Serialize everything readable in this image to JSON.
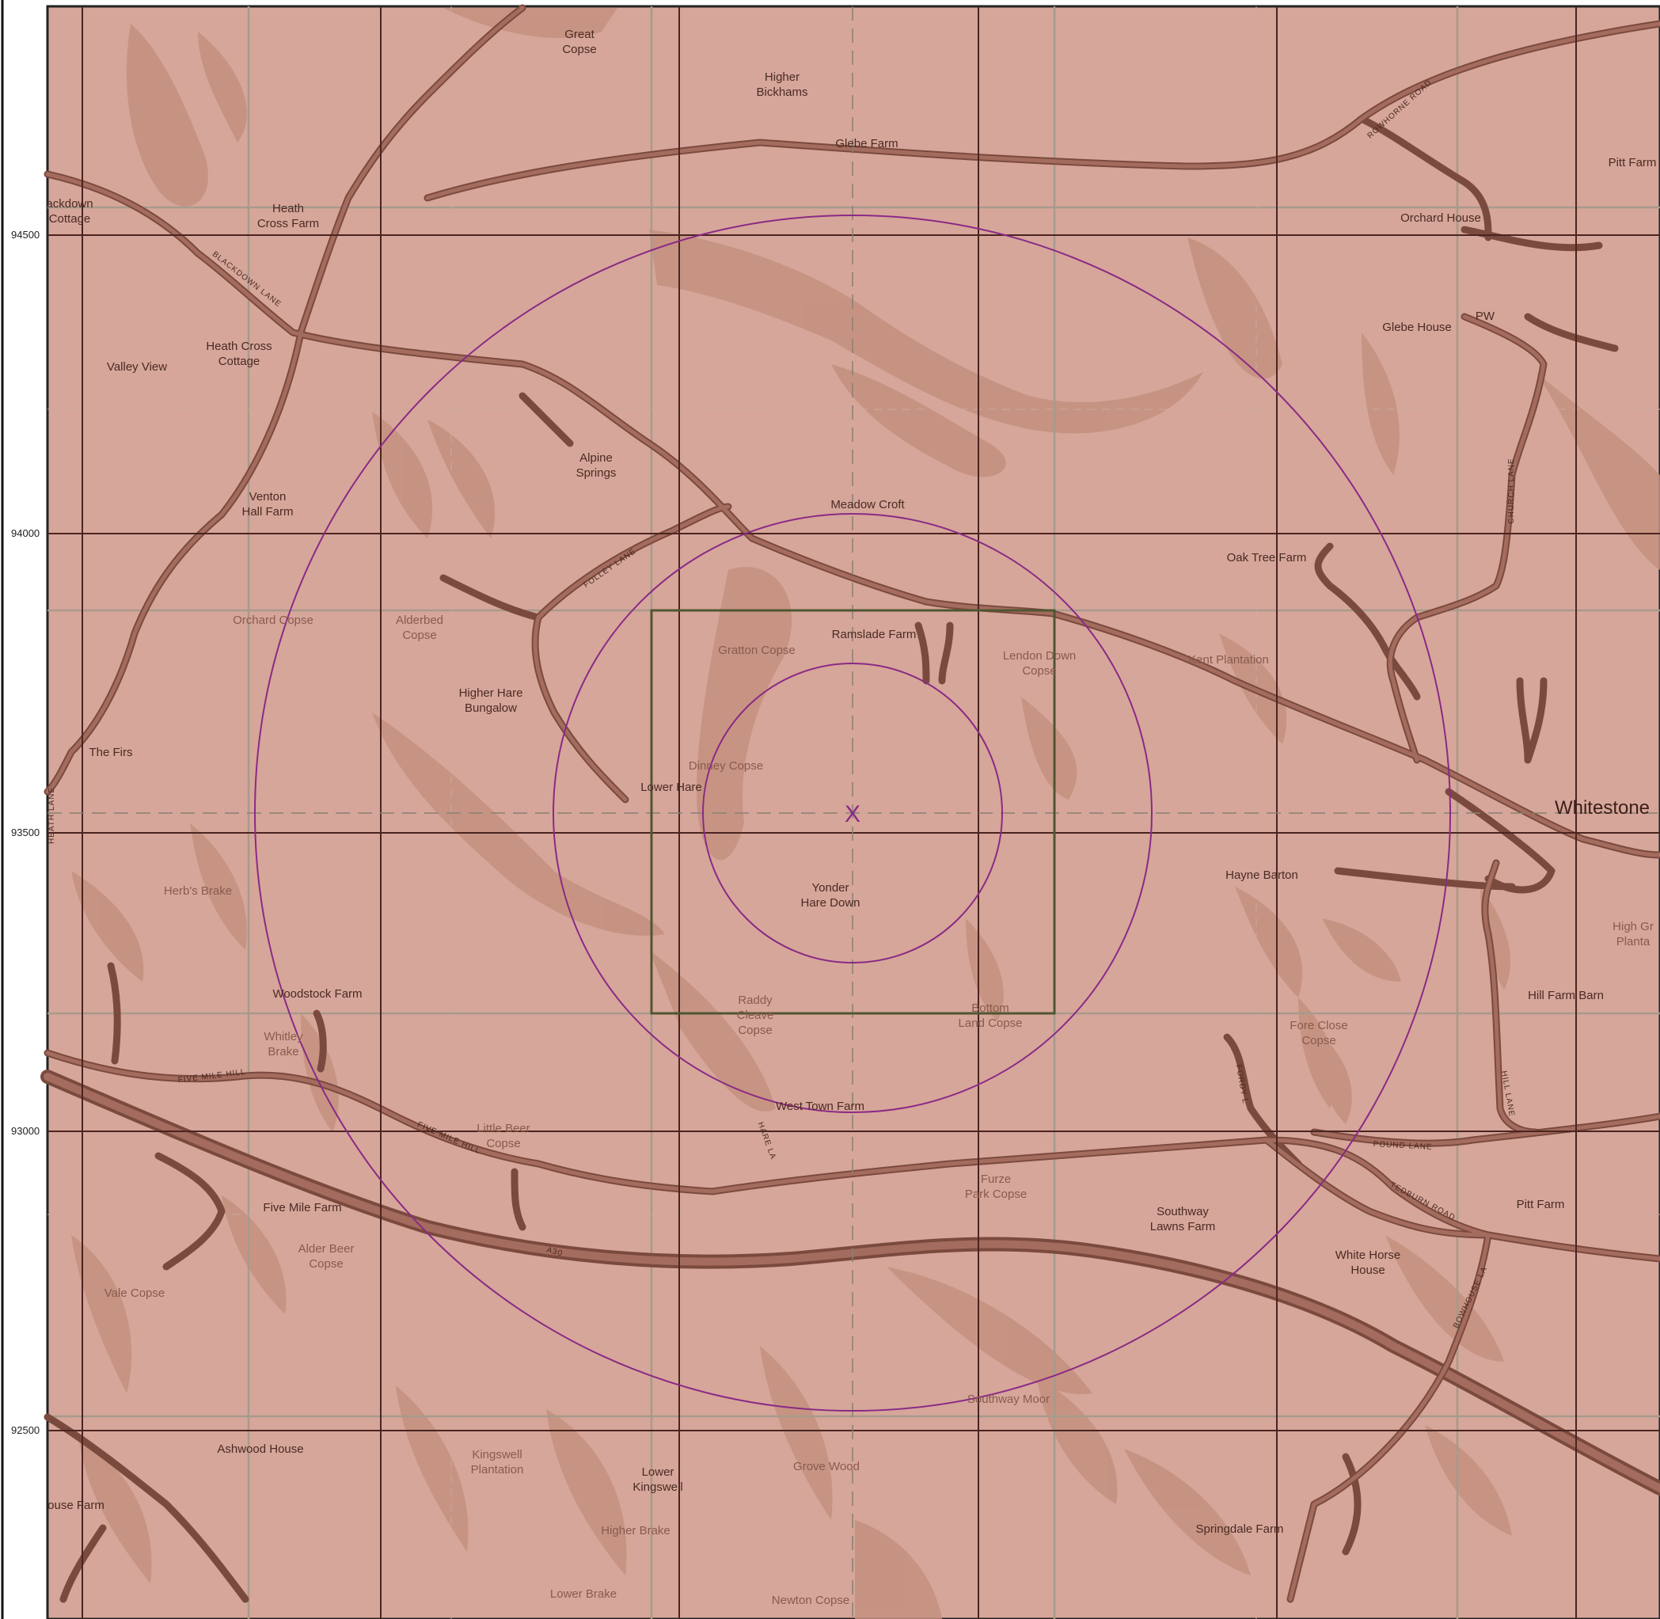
{
  "map": {
    "colors": {
      "land": "#d6a69a",
      "land_dark": "#c4907f",
      "road": "#a46c5e",
      "road_edge": "#7b4a3e",
      "grid_major": "#4a2420",
      "grid_minor": "#a79a8c",
      "rings": "#8a2a85",
      "site_box": "#4e5632"
    },
    "northing_labels": [
      "94500",
      "94000",
      "93500",
      "93000",
      "92500"
    ],
    "center_marker": "X",
    "places": [
      {
        "id": "great-copse",
        "lines": [
          "Great",
          "Copse"
        ],
        "kind": "place"
      },
      {
        "id": "higher-bickhams",
        "lines": [
          "Higher",
          "Bickhams"
        ],
        "kind": "place"
      },
      {
        "id": "glebe-farm",
        "lines": [
          "Glebe Farm"
        ],
        "kind": "place"
      },
      {
        "id": "pitt-farm-top",
        "lines": [
          "Pitt Farm"
        ],
        "kind": "place"
      },
      {
        "id": "blackdown-cottage",
        "lines": [
          "ackdown",
          "Cottage"
        ],
        "kind": "place"
      },
      {
        "id": "heath-cross-farm",
        "lines": [
          "Heath",
          "Cross Farm"
        ],
        "kind": "place"
      },
      {
        "id": "orchard-house",
        "lines": [
          "Orchard House"
        ],
        "kind": "place"
      },
      {
        "id": "glebe-house",
        "lines": [
          "Glebe House"
        ],
        "kind": "place"
      },
      {
        "id": "pw",
        "lines": [
          "PW"
        ],
        "kind": "place"
      },
      {
        "id": "heath-cross-cottage",
        "lines": [
          "Heath Cross",
          "Cottage"
        ],
        "kind": "place"
      },
      {
        "id": "valley-view",
        "lines": [
          "Valley View"
        ],
        "kind": "place"
      },
      {
        "id": "alpine-springs",
        "lines": [
          "Alpine",
          "Springs"
        ],
        "kind": "place"
      },
      {
        "id": "venton-hall-farm",
        "lines": [
          "Venton",
          "Hall Farm"
        ],
        "kind": "place"
      },
      {
        "id": "meadow-croft",
        "lines": [
          "Meadow Croft"
        ],
        "kind": "place"
      },
      {
        "id": "oak-tree-farm",
        "lines": [
          "Oak Tree Farm"
        ],
        "kind": "place"
      },
      {
        "id": "orchard-copse",
        "lines": [
          "Orchard Copse"
        ],
        "kind": "wood"
      },
      {
        "id": "alderbed-copse",
        "lines": [
          "Alderbed",
          "Copse"
        ],
        "kind": "wood"
      },
      {
        "id": "gratton-copse",
        "lines": [
          "Gratton Copse"
        ],
        "kind": "wood"
      },
      {
        "id": "ramslade-farm",
        "lines": [
          "Ramslade Farm"
        ],
        "kind": "place"
      },
      {
        "id": "lendon-down-copse",
        "lines": [
          "Lendon Down",
          "Copse"
        ],
        "kind": "wood"
      },
      {
        "id": "kent-plantation",
        "lines": [
          "Kent Plantation"
        ],
        "kind": "wood"
      },
      {
        "id": "higher-hare-bungalow",
        "lines": [
          "Higher Hare",
          "Bungalow"
        ],
        "kind": "place"
      },
      {
        "id": "the-firs",
        "lines": [
          "The Firs"
        ],
        "kind": "place"
      },
      {
        "id": "dinney-copse",
        "lines": [
          "Dinney Copse"
        ],
        "kind": "wood"
      },
      {
        "id": "lower-hare",
        "lines": [
          "Lower Hare"
        ],
        "kind": "place"
      },
      {
        "id": "whitestone",
        "lines": [
          "Whitestone"
        ],
        "kind": "town"
      },
      {
        "id": "herbs-brake",
        "lines": [
          "Herb's Brake"
        ],
        "kind": "wood"
      },
      {
        "id": "hayne-barton",
        "lines": [
          "Hayne Barton"
        ],
        "kind": "place"
      },
      {
        "id": "yonder-hare-down",
        "lines": [
          "Yonder",
          "Hare Down"
        ],
        "kind": "place"
      },
      {
        "id": "high-grove-plantation",
        "lines": [
          "High Gr",
          "Planta"
        ],
        "kind": "wood"
      },
      {
        "id": "woodstock-farm",
        "lines": [
          "Woodstock Farm"
        ],
        "kind": "place"
      },
      {
        "id": "raddy-cleave-copse",
        "lines": [
          "Raddy",
          "Cleave",
          "Copse"
        ],
        "kind": "wood"
      },
      {
        "id": "bottom-land-copse",
        "lines": [
          "Bottom",
          "Land Copse"
        ],
        "kind": "wood"
      },
      {
        "id": "hill-farm-barn",
        "lines": [
          "Hill Farm Barn"
        ],
        "kind": "place"
      },
      {
        "id": "whitley-brake",
        "lines": [
          "Whitley",
          "Brake"
        ],
        "kind": "wood"
      },
      {
        "id": "fore-close-copse",
        "lines": [
          "Fore Close",
          "Copse"
        ],
        "kind": "wood"
      },
      {
        "id": "west-town-farm",
        "lines": [
          "West Town Farm"
        ],
        "kind": "place"
      },
      {
        "id": "little-beer-copse",
        "lines": [
          "Little Beer",
          "Copse"
        ],
        "kind": "wood"
      },
      {
        "id": "furze-park-copse",
        "lines": [
          "Furze",
          "Park Copse"
        ],
        "kind": "wood"
      },
      {
        "id": "southway-lawns-farm",
        "lines": [
          "Southway",
          "Lawns Farm"
        ],
        "kind": "place"
      },
      {
        "id": "pitt-farm-bottom",
        "lines": [
          "Pitt Farm"
        ],
        "kind": "place"
      },
      {
        "id": "five-mile-farm",
        "lines": [
          "Five Mile Farm"
        ],
        "kind": "place"
      },
      {
        "id": "alder-beer-copse",
        "lines": [
          "Alder Beer",
          "Copse"
        ],
        "kind": "wood"
      },
      {
        "id": "white-horse-house",
        "lines": [
          "White Horse",
          "House"
        ],
        "kind": "place"
      },
      {
        "id": "vale-copse",
        "lines": [
          "Vale Copse"
        ],
        "kind": "wood"
      },
      {
        "id": "southway-moor",
        "lines": [
          "Southway Moor"
        ],
        "kind": "wood"
      },
      {
        "id": "ashwood-house",
        "lines": [
          "Ashwood House"
        ],
        "kind": "place"
      },
      {
        "id": "kingswell-plantation",
        "lines": [
          "Kingswell",
          "Plantation"
        ],
        "kind": "wood"
      },
      {
        "id": "lower-kingswell",
        "lines": [
          "Lower",
          "Kingswell"
        ],
        "kind": "place"
      },
      {
        "id": "grove-wood",
        "lines": [
          "Grove Wood"
        ],
        "kind": "wood"
      },
      {
        "id": "house-farm",
        "lines": [
          "ouse Farm"
        ],
        "kind": "place"
      },
      {
        "id": "higher-brake",
        "lines": [
          "Higher Brake"
        ],
        "kind": "wood"
      },
      {
        "id": "springdale-farm",
        "lines": [
          "Springdale Farm"
        ],
        "kind": "place"
      },
      {
        "id": "lower-brake",
        "lines": [
          "Lower Brake"
        ],
        "kind": "wood"
      },
      {
        "id": "newton-copse",
        "lines": [
          "Newton Copse"
        ],
        "kind": "wood"
      }
    ],
    "road_labels": [
      {
        "id": "rowhorne-road",
        "text": "ROWHORNE ROAD"
      },
      {
        "id": "blackdown-lane",
        "text": "BLACKDOWN LANE"
      },
      {
        "id": "church-lane",
        "text": "CHURCH LANE"
      },
      {
        "id": "folley-lane",
        "text": "FOLLEY LANE"
      },
      {
        "id": "heath-lane",
        "text": "HEATH LANE"
      },
      {
        "id": "five-mile-hill-1",
        "text": "FIVE MILE HILL"
      },
      {
        "id": "five-mile-hill-2",
        "text": "FIVE MILE HILL"
      },
      {
        "id": "hare-la",
        "text": "HARE LA"
      },
      {
        "id": "fordy-la",
        "text": "FORDY L"
      },
      {
        "id": "hill-lane",
        "text": "HILL LANE"
      },
      {
        "id": "pound-lane",
        "text": "POUND LANE"
      },
      {
        "id": "tedburn-road",
        "text": "TEDBURN ROAD"
      },
      {
        "id": "a30",
        "text": "A30"
      },
      {
        "id": "bowhouse-la",
        "text": "BOWHOUSE LA"
      }
    ]
  }
}
